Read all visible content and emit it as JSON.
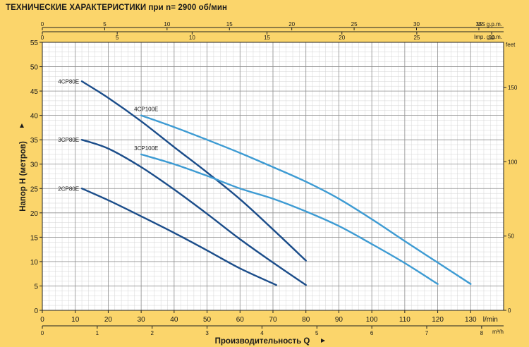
{
  "title": "ТЕХНИЧЕСКИЕ ХАРАКТЕРИСТИКИ при n= 2900 об/мин",
  "chart_data": {
    "type": "line",
    "xlabel": "Производительность  Q",
    "ylabel": "Напор H  (метров)",
    "xunit": "l/min",
    "xlim": [
      0,
      140
    ],
    "ylim": [
      0,
      55
    ],
    "x_ticks": [
      0,
      10,
      20,
      30,
      40,
      50,
      60,
      70,
      80,
      90,
      100,
      110,
      120,
      130
    ],
    "y_ticks": [
      0,
      5,
      10,
      15,
      20,
      25,
      30,
      35,
      40,
      45,
      50,
      55
    ],
    "grid": true,
    "secondary_axes": {
      "top_us_gpm": {
        "unit": "US g.p.m.",
        "ticks": [
          0,
          5,
          10,
          15,
          20,
          25,
          30,
          35
        ]
      },
      "top_imp_gpm": {
        "unit": "Imp. g.p.m.",
        "ticks": [
          0,
          5,
          10,
          15,
          20,
          25,
          30
        ]
      },
      "bottom_m3h": {
        "unit": "m³/h",
        "ticks": [
          0,
          1,
          2,
          3,
          4,
          5,
          6,
          7,
          8
        ]
      },
      "right_feet": {
        "unit": "feet",
        "ticks": [
          0,
          50,
          100,
          150
        ]
      }
    },
    "series": [
      {
        "name": "2CP80E",
        "color": "#1b4d8a",
        "points": [
          [
            12,
            25
          ],
          [
            20,
            22.6
          ],
          [
            30,
            19.3
          ],
          [
            40,
            15.9
          ],
          [
            50,
            12.3
          ],
          [
            60,
            8.6
          ],
          [
            71,
            5.2
          ]
        ]
      },
      {
        "name": "3CP80E",
        "color": "#1b4d8a",
        "points": [
          [
            12,
            35
          ],
          [
            20,
            33.2
          ],
          [
            30,
            29.4
          ],
          [
            40,
            24.8
          ],
          [
            50,
            19.8
          ],
          [
            60,
            14.6
          ],
          [
            70,
            9.8
          ],
          [
            80,
            5.2
          ]
        ]
      },
      {
        "name": "4CP80E",
        "color": "#1b4d8a",
        "points": [
          [
            12,
            47
          ],
          [
            20,
            43.6
          ],
          [
            30,
            38.8
          ],
          [
            40,
            33.5
          ],
          [
            50,
            28.3
          ],
          [
            60,
            22.8
          ],
          [
            70,
            16.6
          ],
          [
            80,
            10.2
          ]
        ]
      },
      {
        "name": "4CP100E",
        "color": "#3d9bd3",
        "points": [
          [
            30,
            40
          ],
          [
            40,
            37.6
          ],
          [
            50,
            35
          ],
          [
            60,
            32.3
          ],
          [
            70,
            29.4
          ],
          [
            80,
            26.4
          ],
          [
            90,
            22.9
          ],
          [
            100,
            18.7
          ],
          [
            110,
            14.2
          ],
          [
            120,
            9.8
          ],
          [
            130,
            5.4
          ]
        ]
      },
      {
        "name": "3CP100E",
        "color": "#3d9bd3",
        "points": [
          [
            30,
            32
          ],
          [
            40,
            30
          ],
          [
            50,
            27.6
          ],
          [
            60,
            25
          ],
          [
            70,
            22.9
          ],
          [
            80,
            20.3
          ],
          [
            90,
            17.3
          ],
          [
            100,
            13.6
          ],
          [
            110,
            9.7
          ],
          [
            120,
            5.4
          ]
        ]
      }
    ]
  }
}
